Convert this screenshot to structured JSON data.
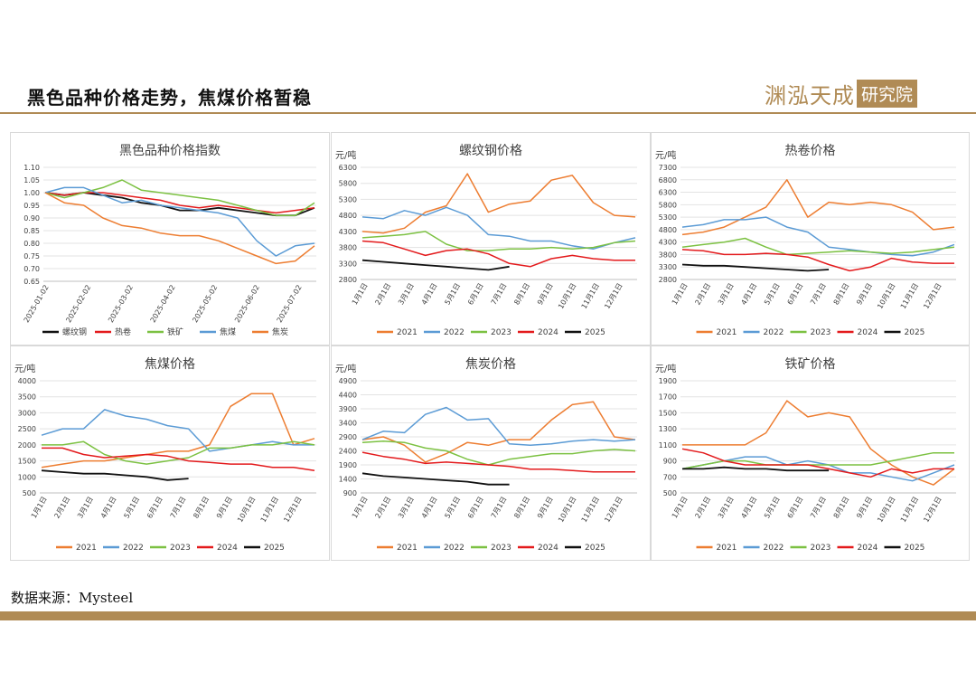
{
  "header": {
    "title": "黑色品种价格走势，焦煤价格暂稳",
    "logo_main": "渊泓天成",
    "logo_box": "研究院"
  },
  "footer": {
    "source": "数据来源：Mysteel"
  },
  "colors": {
    "accent": "#b08b55",
    "螺纹钢": "#111111",
    "热卷": "#e31a1c",
    "铁矿": "#7cc142",
    "焦煤": "#5b9bd5",
    "焦炭": "#ed7d31",
    "2021": "#ed7d31",
    "2022": "#5b9bd5",
    "2023": "#7cc142",
    "2024": "#e31a1c",
    "2025": "#111111"
  },
  "chart_data": [
    {
      "type": "line",
      "title": "黑色品种价格指数",
      "ylabel": "",
      "ylim": [
        0.65,
        1.1
      ],
      "yticks": [
        "1.10",
        "1.05",
        "1.00",
        "0.95",
        "0.90",
        "0.85",
        "0.80",
        "0.75",
        "0.70",
        "0.65"
      ],
      "xticks": [
        "2025-01-02",
        "2025-02-02",
        "2025-03-02",
        "2025-04-02",
        "2025-05-02",
        "2025-06-02",
        "2025-07-02"
      ],
      "x": [
        "2025-01-02",
        "2025-01-15",
        "2025-02-02",
        "2025-02-15",
        "2025-03-02",
        "2025-03-15",
        "2025-04-02",
        "2025-04-15",
        "2025-05-02",
        "2025-05-15",
        "2025-06-02",
        "2025-06-15",
        "2025-07-02",
        "2025-07-15",
        "2025-07-25"
      ],
      "legend": [
        "螺纹钢",
        "热卷",
        "铁矿",
        "焦煤",
        "焦炭"
      ],
      "series": [
        {
          "name": "螺纹钢",
          "values": [
            1.0,
            0.99,
            1.0,
            0.99,
            0.98,
            0.96,
            0.95,
            0.93,
            0.93,
            0.94,
            0.93,
            0.92,
            0.91,
            0.91,
            0.94
          ]
        },
        {
          "name": "热卷",
          "values": [
            1.0,
            0.99,
            1.0,
            1.0,
            0.99,
            0.98,
            0.97,
            0.95,
            0.94,
            0.95,
            0.94,
            0.93,
            0.92,
            0.93,
            0.94
          ]
        },
        {
          "name": "铁矿",
          "values": [
            1.0,
            0.98,
            1.0,
            1.02,
            1.05,
            1.01,
            1.0,
            0.99,
            0.98,
            0.97,
            0.95,
            0.93,
            0.91,
            0.91,
            0.96
          ]
        },
        {
          "name": "焦煤",
          "values": [
            1.0,
            1.02,
            1.02,
            0.99,
            0.96,
            0.97,
            0.95,
            0.94,
            0.93,
            0.92,
            0.9,
            0.81,
            0.75,
            0.79,
            0.8
          ]
        },
        {
          "name": "焦炭",
          "values": [
            1.0,
            0.96,
            0.95,
            0.9,
            0.87,
            0.86,
            0.84,
            0.83,
            0.83,
            0.81,
            0.78,
            0.75,
            0.72,
            0.73,
            0.79
          ]
        }
      ]
    },
    {
      "type": "line",
      "title": "螺纹钢价格",
      "ylabel": "元/吨",
      "ylim": [
        2800,
        6300
      ],
      "yticks": [
        "6300",
        "5800",
        "5300",
        "4800",
        "4300",
        "3800",
        "3300",
        "2800"
      ],
      "xticks": [
        "1月1日",
        "2月1日",
        "3月1日",
        "4月1日",
        "5月1日",
        "6月1日",
        "7月1日",
        "8月1日",
        "9月1日",
        "10月1日",
        "11月1日",
        "12月1日"
      ],
      "legend": [
        "2021",
        "2022",
        "2023",
        "2024",
        "2025"
      ],
      "series": [
        {
          "name": "2021",
          "values": [
            4300,
            4250,
            4400,
            4900,
            5100,
            6100,
            4900,
            5150,
            5250,
            5900,
            6050,
            5200,
            4800,
            4750
          ]
        },
        {
          "name": "2022",
          "values": [
            4750,
            4700,
            4950,
            4800,
            5050,
            4800,
            4200,
            4150,
            4000,
            4000,
            3850,
            3750,
            3950,
            4100
          ]
        },
        {
          "name": "2023",
          "values": [
            4100,
            4150,
            4200,
            4300,
            3900,
            3700,
            3700,
            3750,
            3750,
            3800,
            3750,
            3800,
            3950,
            4000
          ]
        },
        {
          "name": "2024",
          "values": [
            4000,
            3950,
            3750,
            3550,
            3700,
            3750,
            3600,
            3300,
            3200,
            3450,
            3550,
            3450,
            3400,
            3400
          ]
        },
        {
          "name": "2025",
          "values": [
            3400,
            3350,
            3300,
            3250,
            3200,
            3150,
            3100,
            3200,
            null,
            null,
            null,
            null,
            null,
            null
          ]
        }
      ]
    },
    {
      "type": "line",
      "title": "热卷价格",
      "ylabel": "元/吨",
      "ylim": [
        2800,
        7300
      ],
      "yticks": [
        "7300",
        "6800",
        "6300",
        "5800",
        "5300",
        "4800",
        "4300",
        "3800",
        "3300",
        "2800"
      ],
      "xticks": [
        "1月1日",
        "2月1日",
        "3月1日",
        "4月1日",
        "5月1日",
        "6月1日",
        "7月1日",
        "8月1日",
        "9月1日",
        "10月1日",
        "11月1日",
        "12月1日"
      ],
      "legend": [
        "2021",
        "2022",
        "2023",
        "2024",
        "2025"
      ],
      "series": [
        {
          "name": "2021",
          "values": [
            4600,
            4700,
            4900,
            5300,
            5700,
            6800,
            5300,
            5900,
            5800,
            5900,
            5800,
            5500,
            4800,
            4900
          ]
        },
        {
          "name": "2022",
          "values": [
            4900,
            5000,
            5200,
            5200,
            5300,
            4900,
            4700,
            4100,
            4000,
            3900,
            3800,
            3750,
            3900,
            4200
          ]
        },
        {
          "name": "2023",
          "values": [
            4100,
            4200,
            4300,
            4450,
            4100,
            3800,
            3850,
            3900,
            3950,
            3900,
            3850,
            3900,
            4000,
            4100
          ]
        },
        {
          "name": "2024",
          "values": [
            4000,
            3950,
            3800,
            3800,
            3850,
            3800,
            3700,
            3400,
            3150,
            3300,
            3650,
            3500,
            3450,
            3450
          ]
        },
        {
          "name": "2025",
          "values": [
            3400,
            3350,
            3350,
            3300,
            3250,
            3200,
            3150,
            3200,
            null,
            null,
            null,
            null,
            null,
            null
          ]
        }
      ]
    },
    {
      "type": "line",
      "title": "焦煤价格",
      "ylabel": "元/吨",
      "ylim": [
        500,
        4000
      ],
      "yticks": [
        "4000",
        "3500",
        "3000",
        "2500",
        "2000",
        "1500",
        "1000",
        "500"
      ],
      "xticks": [
        "1月1日",
        "2月1日",
        "3月1日",
        "4月1日",
        "5月1日",
        "6月1日",
        "7月1日",
        "8月1日",
        "9月1日",
        "10月1日",
        "11月1日",
        "12月1日"
      ],
      "legend": [
        "2021",
        "2022",
        "2023",
        "2024",
        "2025"
      ],
      "series": [
        {
          "name": "2021",
          "values": [
            1300,
            1400,
            1500,
            1500,
            1600,
            1700,
            1800,
            1800,
            2000,
            3200,
            3600,
            3600,
            2000,
            2200
          ]
        },
        {
          "name": "2022",
          "values": [
            2300,
            2500,
            2500,
            3100,
            2900,
            2800,
            2600,
            2500,
            1800,
            1900,
            2000,
            2100,
            2000,
            2000
          ]
        },
        {
          "name": "2023",
          "values": [
            2000,
            2000,
            2100,
            1700,
            1500,
            1400,
            1500,
            1600,
            1900,
            1900,
            2000,
            2000,
            2100,
            2000
          ]
        },
        {
          "name": "2024",
          "values": [
            1900,
            1900,
            1700,
            1600,
            1650,
            1700,
            1650,
            1500,
            1450,
            1400,
            1400,
            1300,
            1300,
            1200
          ]
        },
        {
          "name": "2025",
          "values": [
            1200,
            1150,
            1100,
            1100,
            1050,
            1000,
            900,
            950,
            null,
            null,
            null,
            null,
            null,
            null
          ]
        }
      ]
    },
    {
      "type": "line",
      "title": "焦炭价格",
      "ylabel": "元/吨",
      "ylim": [
        900,
        4900
      ],
      "yticks": [
        "4900",
        "4400",
        "3900",
        "3400",
        "2900",
        "2400",
        "1900",
        "1400",
        "900"
      ],
      "xticks": [
        "1月1日",
        "2月1日",
        "3月1日",
        "4月1日",
        "5月1日",
        "6月1日",
        "7月1日",
        "8月1日",
        "9月1日",
        "10月1日",
        "11月1日",
        "12月1日"
      ],
      "legend": [
        "2021",
        "2022",
        "2023",
        "2024",
        "2025"
      ],
      "series": [
        {
          "name": "2021",
          "values": [
            2800,
            2900,
            2600,
            2000,
            2300,
            2700,
            2600,
            2800,
            2800,
            3500,
            4050,
            4150,
            2900,
            2800
          ]
        },
        {
          "name": "2022",
          "values": [
            2800,
            3100,
            3050,
            3700,
            3950,
            3500,
            3550,
            2650,
            2600,
            2650,
            2750,
            2800,
            2750,
            2800
          ]
        },
        {
          "name": "2023",
          "values": [
            2700,
            2750,
            2700,
            2500,
            2400,
            2100,
            1900,
            2100,
            2200,
            2300,
            2300,
            2400,
            2450,
            2400
          ]
        },
        {
          "name": "2024",
          "values": [
            2350,
            2200,
            2100,
            1950,
            2000,
            1950,
            1900,
            1850,
            1750,
            1750,
            1700,
            1650,
            1650,
            1650
          ]
        },
        {
          "name": "2025",
          "values": [
            1600,
            1500,
            1450,
            1400,
            1350,
            1300,
            1200,
            1200,
            null,
            null,
            null,
            null,
            null,
            null
          ]
        }
      ]
    },
    {
      "type": "line",
      "title": "铁矿价格",
      "ylabel": "元/吨",
      "ylim": [
        500,
        1900
      ],
      "yticks": [
        "1900",
        "1700",
        "1500",
        "1300",
        "1100",
        "900",
        "700",
        "500"
      ],
      "xticks": [
        "1月1日",
        "2月1日",
        "3月1日",
        "4月1日",
        "5月1日",
        "6月1日",
        "7月1日",
        "8月1日",
        "9月1日",
        "10月1日",
        "11月1日",
        "12月1日"
      ],
      "legend": [
        "2021",
        "2022",
        "2023",
        "2024",
        "2025"
      ],
      "series": [
        {
          "name": "2021",
          "values": [
            1100,
            1100,
            1100,
            1100,
            1250,
            1650,
            1450,
            1500,
            1450,
            1050,
            850,
            700,
            600,
            800
          ]
        },
        {
          "name": "2022",
          "values": [
            800,
            850,
            900,
            950,
            950,
            850,
            900,
            850,
            750,
            750,
            700,
            650,
            750,
            850
          ]
        },
        {
          "name": "2023",
          "values": [
            800,
            850,
            900,
            900,
            850,
            850,
            850,
            850,
            850,
            850,
            900,
            950,
            1000,
            1000
          ]
        },
        {
          "name": "2024",
          "values": [
            1050,
            1000,
            900,
            850,
            850,
            850,
            850,
            800,
            750,
            700,
            800,
            750,
            800,
            800
          ]
        },
        {
          "name": "2025",
          "values": [
            800,
            800,
            820,
            800,
            800,
            780,
            780,
            780,
            null,
            null,
            null,
            null,
            null,
            null
          ]
        }
      ]
    }
  ]
}
